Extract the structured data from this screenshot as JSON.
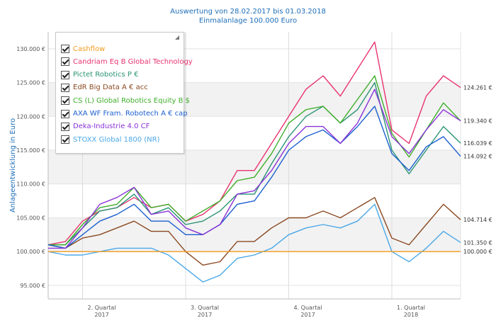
{
  "title_line1": "Auswertung von 28.02.2017 bis 01.03.2018",
  "title_line2": "Einmalanlage 100.000 Euro",
  "chart_data": {
    "type": "line",
    "ylabel": "Anlageentwicklung  in Euro",
    "ylim": [
      93000,
      132500
    ],
    "yticks": [
      95000,
      100000,
      105000,
      110000,
      115000,
      120000,
      125000,
      130000
    ],
    "ytick_labels": [
      "95.000 €",
      "100.000 €",
      "105.000 €",
      "110.000 €",
      "115.000 €",
      "120.000 €",
      "125.000 €",
      "130.000 €"
    ],
    "xlim": [
      0,
      12
    ],
    "xticks": [
      {
        "pos": 1,
        "line1": "2. Quartal",
        "line2": "2017"
      },
      {
        "pos": 4,
        "line1": "3. Quartal",
        "line2": "2017"
      },
      {
        "pos": 7,
        "line1": "4. Quartal",
        "line2": "2017"
      },
      {
        "pos": 10,
        "line1": "1. Quartal",
        "line2": "2018"
      }
    ],
    "x_grid_positions": [
      1,
      4,
      7,
      10
    ],
    "grid": "horizontal bands",
    "legend_position": "top-left",
    "end_labels": [
      "124.261 €",
      "119.340 €",
      "116.039 €",
      "114.092 €",
      "104.714 €",
      "101.350 €",
      "100.000 €"
    ],
    "series": [
      {
        "name": "Cashflow",
        "color": "#f39a1e",
        "x": [
          0,
          12
        ],
        "y": [
          100000,
          100000
        ]
      },
      {
        "name": "Candriam Eq B Global Technology",
        "color": "#e8336f",
        "x": [
          0,
          0.5,
          1,
          1.5,
          2,
          2.5,
          3,
          3.5,
          4,
          4.5,
          5,
          5.5,
          6,
          6.5,
          7,
          7.5,
          8,
          8.5,
          9,
          9.5,
          10,
          10.5,
          11,
          11.5,
          12
        ],
        "y": [
          101000,
          101500,
          104500,
          106000,
          106500,
          108000,
          106500,
          107000,
          104500,
          105500,
          107500,
          112000,
          112000,
          116000,
          120000,
          124000,
          126000,
          123000,
          127000,
          131000,
          118000,
          116000,
          123000,
          126000,
          124261
        ]
      },
      {
        "name": "Pictet Robotics P €",
        "color": "#2a9474",
        "x": [
          0,
          0.5,
          1,
          1.5,
          2,
          2.5,
          3,
          3.5,
          4,
          4.5,
          5,
          5.5,
          6,
          6.5,
          7,
          7.5,
          8,
          8.5,
          9,
          9.5,
          10,
          10.5,
          11,
          11.5,
          12
        ],
        "y": [
          101000,
          101000,
          103500,
          106000,
          106500,
          108500,
          105500,
          106500,
          104000,
          104500,
          106000,
          108500,
          108500,
          113000,
          117000,
          120000,
          121500,
          119000,
          121000,
          125000,
          115000,
          111500,
          115000,
          118500,
          116039
        ]
      },
      {
        "name": "EdR Big Data A € acc",
        "color": "#8b4a22",
        "x": [
          0,
          0.5,
          1,
          1.5,
          2,
          2.5,
          3,
          3.5,
          4,
          4.5,
          5,
          5.5,
          6,
          6.5,
          7,
          7.5,
          8,
          8.5,
          9,
          9.5,
          10,
          10.5,
          11,
          11.5,
          12
        ],
        "y": [
          101000,
          100500,
          102000,
          102500,
          103500,
          104500,
          103000,
          103000,
          100000,
          98000,
          98500,
          101500,
          101500,
          103500,
          105000,
          105000,
          106000,
          105000,
          106500,
          108000,
          102000,
          101000,
          104000,
          107000,
          104714
        ]
      },
      {
        "name": "CS (L) Global Robotics Equity B $",
        "color": "#3fae2a",
        "x": [
          0,
          0.5,
          1,
          1.5,
          2,
          2.5,
          3,
          3.5,
          4,
          4.5,
          5,
          5.5,
          6,
          6.5,
          7,
          7.5,
          8,
          8.5,
          9,
          9.5,
          10,
          10.5,
          11,
          11.5,
          12
        ],
        "y": [
          101000,
          101000,
          104000,
          106500,
          107000,
          109500,
          106500,
          107000,
          104500,
          106000,
          107500,
          110500,
          111000,
          114500,
          119000,
          121000,
          121500,
          119000,
          122500,
          126000,
          117500,
          114000,
          118000,
          122000,
          119340
        ]
      },
      {
        "name": "AXA WF Fram. Robotech A € cap",
        "color": "#1c5fcf",
        "x": [
          0,
          0.5,
          1,
          1.5,
          2,
          2.5,
          3,
          3.5,
          4,
          4.5,
          5,
          5.5,
          6,
          6.5,
          7,
          7.5,
          8,
          8.5,
          9,
          9.5,
          10,
          10.5,
          11,
          11.5,
          12
        ],
        "y": [
          101000,
          100500,
          102500,
          104500,
          105500,
          107000,
          104500,
          104500,
          102500,
          102500,
          104000,
          107000,
          107500,
          111000,
          115000,
          117000,
          118000,
          116000,
          118500,
          121500,
          114500,
          112000,
          115500,
          117000,
          114092
        ]
      },
      {
        "name": "Deka-Industrie 4.0 CF",
        "color": "#8a32d8",
        "x": [
          0,
          0.5,
          1,
          1.5,
          2,
          2.5,
          3,
          3.5,
          4,
          4.5,
          5,
          5.5,
          6,
          6.5,
          7,
          7.5,
          8,
          8.5,
          9,
          9.5,
          10,
          10.5,
          11,
          11.5,
          12
        ],
        "y": [
          100500,
          100500,
          103500,
          107000,
          108000,
          109500,
          105500,
          106000,
          103500,
          102500,
          104000,
          108500,
          109000,
          112000,
          116000,
          118500,
          118500,
          116000,
          119000,
          124000,
          117000,
          114500,
          118000,
          121000,
          119340
        ]
      },
      {
        "name": "STOXX Global 1800 (NR)",
        "color": "#4aa8e8",
        "x": [
          0,
          0.5,
          1,
          1.5,
          2,
          2.5,
          3,
          3.5,
          4,
          4.5,
          5,
          5.5,
          6,
          6.5,
          7,
          7.5,
          8,
          8.5,
          9,
          9.5,
          10,
          10.5,
          11,
          11.5,
          12
        ],
        "y": [
          100000,
          99500,
          99500,
          100000,
          100500,
          100500,
          100500,
          99500,
          97500,
          95500,
          96500,
          99000,
          99500,
          100500,
          102500,
          103500,
          104000,
          103500,
          104500,
          107000,
          100000,
          98500,
          100500,
          103000,
          101350
        ]
      }
    ]
  }
}
